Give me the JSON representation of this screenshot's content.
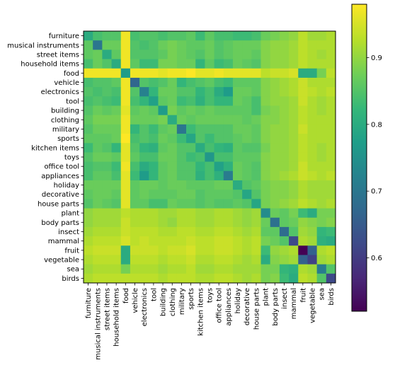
{
  "chart_data": {
    "type": "heatmap",
    "title": "",
    "xlabel": "",
    "ylabel": "",
    "categories": [
      "furniture",
      "musical instruments",
      "street items",
      "household items",
      "food",
      "vehicle",
      "electronics",
      "tool",
      "building",
      "clothing",
      "military",
      "sports",
      "kitchen items",
      "toys",
      "office tool",
      "appliances",
      "holiday",
      "decorative",
      "house parts",
      "plant",
      "body parts",
      "insect",
      "mammal",
      "fruit",
      "vegetable",
      "sea",
      "birds"
    ],
    "colormap": "viridis",
    "vmin": 0.52,
    "vmax": 0.98,
    "colorbar_ticks": [
      "0.6",
      "0.7",
      "0.8",
      "0.9"
    ],
    "colorbar_tick_values": [
      0.6,
      0.7,
      0.8,
      0.9
    ],
    "values": [
      [
        0.8,
        0.84,
        0.85,
        0.85,
        0.97,
        0.84,
        0.85,
        0.85,
        0.84,
        0.85,
        0.85,
        0.86,
        0.83,
        0.86,
        0.84,
        0.84,
        0.83,
        0.83,
        0.84,
        0.87,
        0.88,
        0.89,
        0.9,
        0.93,
        0.91,
        0.91,
        0.92
      ],
      [
        0.86,
        0.7,
        0.87,
        0.87,
        0.97,
        0.85,
        0.84,
        0.85,
        0.87,
        0.88,
        0.87,
        0.86,
        0.86,
        0.87,
        0.85,
        0.86,
        0.87,
        0.87,
        0.87,
        0.89,
        0.9,
        0.9,
        0.91,
        0.93,
        0.92,
        0.92,
        0.92
      ],
      [
        0.86,
        0.87,
        0.8,
        0.86,
        0.97,
        0.85,
        0.85,
        0.85,
        0.86,
        0.88,
        0.87,
        0.86,
        0.85,
        0.87,
        0.85,
        0.86,
        0.87,
        0.87,
        0.86,
        0.89,
        0.9,
        0.9,
        0.91,
        0.93,
        0.92,
        0.91,
        0.92
      ],
      [
        0.84,
        0.87,
        0.85,
        0.8,
        0.97,
        0.86,
        0.83,
        0.83,
        0.88,
        0.88,
        0.87,
        0.87,
        0.82,
        0.86,
        0.83,
        0.84,
        0.87,
        0.86,
        0.85,
        0.89,
        0.9,
        0.9,
        0.91,
        0.93,
        0.92,
        0.92,
        0.92
      ],
      [
        0.97,
        0.97,
        0.97,
        0.97,
        0.77,
        0.97,
        0.97,
        0.97,
        0.96,
        0.97,
        0.97,
        0.98,
        0.96,
        0.96,
        0.97,
        0.96,
        0.96,
        0.96,
        0.96,
        0.93,
        0.94,
        0.94,
        0.95,
        0.8,
        0.8,
        0.88,
        0.93
      ],
      [
        0.84,
        0.85,
        0.85,
        0.86,
        0.97,
        0.67,
        0.85,
        0.84,
        0.85,
        0.87,
        0.82,
        0.84,
        0.85,
        0.86,
        0.84,
        0.83,
        0.86,
        0.86,
        0.86,
        0.89,
        0.9,
        0.91,
        0.92,
        0.94,
        0.92,
        0.92,
        0.92
      ],
      [
        0.85,
        0.84,
        0.85,
        0.84,
        0.97,
        0.85,
        0.72,
        0.82,
        0.87,
        0.87,
        0.85,
        0.85,
        0.82,
        0.84,
        0.8,
        0.77,
        0.87,
        0.87,
        0.86,
        0.89,
        0.9,
        0.91,
        0.92,
        0.94,
        0.93,
        0.92,
        0.93
      ],
      [
        0.84,
        0.85,
        0.84,
        0.83,
        0.97,
        0.84,
        0.82,
        0.78,
        0.86,
        0.87,
        0.83,
        0.84,
        0.81,
        0.84,
        0.82,
        0.82,
        0.87,
        0.86,
        0.84,
        0.89,
        0.9,
        0.9,
        0.91,
        0.94,
        0.92,
        0.91,
        0.92
      ],
      [
        0.85,
        0.87,
        0.86,
        0.87,
        0.96,
        0.86,
        0.87,
        0.86,
        0.77,
        0.88,
        0.86,
        0.87,
        0.86,
        0.87,
        0.86,
        0.86,
        0.86,
        0.86,
        0.84,
        0.88,
        0.89,
        0.9,
        0.91,
        0.93,
        0.92,
        0.91,
        0.92
      ],
      [
        0.86,
        0.88,
        0.88,
        0.88,
        0.97,
        0.87,
        0.87,
        0.87,
        0.88,
        0.8,
        0.87,
        0.86,
        0.87,
        0.87,
        0.87,
        0.87,
        0.87,
        0.86,
        0.87,
        0.89,
        0.89,
        0.9,
        0.91,
        0.93,
        0.92,
        0.92,
        0.92
      ],
      [
        0.85,
        0.87,
        0.87,
        0.87,
        0.97,
        0.82,
        0.85,
        0.83,
        0.86,
        0.87,
        0.7,
        0.83,
        0.85,
        0.85,
        0.85,
        0.85,
        0.87,
        0.87,
        0.86,
        0.89,
        0.9,
        0.9,
        0.91,
        0.94,
        0.92,
        0.92,
        0.92
      ],
      [
        0.86,
        0.86,
        0.86,
        0.87,
        0.98,
        0.84,
        0.85,
        0.84,
        0.87,
        0.86,
        0.83,
        0.79,
        0.85,
        0.83,
        0.85,
        0.85,
        0.86,
        0.87,
        0.86,
        0.89,
        0.9,
        0.9,
        0.91,
        0.93,
        0.92,
        0.92,
        0.92
      ],
      [
        0.83,
        0.86,
        0.85,
        0.82,
        0.96,
        0.85,
        0.82,
        0.81,
        0.86,
        0.87,
        0.85,
        0.85,
        0.8,
        0.84,
        0.82,
        0.81,
        0.86,
        0.85,
        0.85,
        0.88,
        0.9,
        0.9,
        0.91,
        0.93,
        0.92,
        0.91,
        0.92
      ],
      [
        0.85,
        0.87,
        0.87,
        0.86,
        0.96,
        0.86,
        0.84,
        0.84,
        0.87,
        0.87,
        0.85,
        0.83,
        0.84,
        0.76,
        0.84,
        0.84,
        0.86,
        0.86,
        0.86,
        0.89,
        0.9,
        0.9,
        0.91,
        0.93,
        0.92,
        0.91,
        0.92
      ],
      [
        0.84,
        0.85,
        0.85,
        0.83,
        0.97,
        0.84,
        0.8,
        0.82,
        0.86,
        0.87,
        0.85,
        0.85,
        0.82,
        0.84,
        0.78,
        0.81,
        0.87,
        0.86,
        0.85,
        0.89,
        0.9,
        0.9,
        0.91,
        0.94,
        0.92,
        0.92,
        0.92
      ],
      [
        0.84,
        0.86,
        0.86,
        0.84,
        0.96,
        0.83,
        0.77,
        0.82,
        0.86,
        0.87,
        0.85,
        0.85,
        0.81,
        0.84,
        0.81,
        0.71,
        0.87,
        0.86,
        0.85,
        0.89,
        0.9,
        0.91,
        0.92,
        0.94,
        0.93,
        0.92,
        0.93
      ],
      [
        0.87,
        0.87,
        0.87,
        0.87,
        0.96,
        0.86,
        0.87,
        0.87,
        0.86,
        0.87,
        0.87,
        0.86,
        0.86,
        0.86,
        0.87,
        0.87,
        0.8,
        0.85,
        0.86,
        0.88,
        0.89,
        0.89,
        0.9,
        0.92,
        0.91,
        0.91,
        0.91
      ],
      [
        0.86,
        0.87,
        0.87,
        0.86,
        0.96,
        0.86,
        0.87,
        0.86,
        0.86,
        0.86,
        0.87,
        0.87,
        0.85,
        0.86,
        0.86,
        0.86,
        0.85,
        0.79,
        0.85,
        0.88,
        0.89,
        0.89,
        0.9,
        0.92,
        0.91,
        0.91,
        0.91
      ],
      [
        0.85,
        0.87,
        0.86,
        0.85,
        0.96,
        0.86,
        0.86,
        0.84,
        0.84,
        0.87,
        0.86,
        0.86,
        0.85,
        0.86,
        0.85,
        0.85,
        0.86,
        0.85,
        0.79,
        0.88,
        0.89,
        0.9,
        0.91,
        0.93,
        0.92,
        0.91,
        0.92
      ],
      [
        0.9,
        0.91,
        0.91,
        0.91,
        0.93,
        0.92,
        0.92,
        0.92,
        0.91,
        0.91,
        0.92,
        0.92,
        0.91,
        0.91,
        0.92,
        0.92,
        0.91,
        0.9,
        0.91,
        0.74,
        0.87,
        0.86,
        0.88,
        0.83,
        0.8,
        0.88,
        0.88
      ],
      [
        0.9,
        0.91,
        0.91,
        0.91,
        0.94,
        0.92,
        0.92,
        0.92,
        0.91,
        0.9,
        0.92,
        0.92,
        0.91,
        0.91,
        0.92,
        0.92,
        0.91,
        0.9,
        0.91,
        0.87,
        0.69,
        0.86,
        0.87,
        0.9,
        0.89,
        0.88,
        0.89
      ],
      [
        0.91,
        0.92,
        0.92,
        0.92,
        0.94,
        0.93,
        0.93,
        0.93,
        0.92,
        0.92,
        0.93,
        0.93,
        0.92,
        0.92,
        0.93,
        0.93,
        0.92,
        0.91,
        0.92,
        0.86,
        0.86,
        0.68,
        0.85,
        0.91,
        0.9,
        0.82,
        0.83
      ],
      [
        0.92,
        0.93,
        0.93,
        0.93,
        0.95,
        0.93,
        0.94,
        0.93,
        0.93,
        0.93,
        0.93,
        0.94,
        0.93,
        0.93,
        0.94,
        0.94,
        0.93,
        0.92,
        0.93,
        0.88,
        0.87,
        0.85,
        0.62,
        0.92,
        0.91,
        0.81,
        0.8
      ],
      [
        0.93,
        0.94,
        0.94,
        0.94,
        0.8,
        0.94,
        0.94,
        0.94,
        0.93,
        0.94,
        0.94,
        0.95,
        0.93,
        0.93,
        0.94,
        0.94,
        0.93,
        0.92,
        0.93,
        0.83,
        0.9,
        0.91,
        0.92,
        0.52,
        0.66,
        0.92,
        0.93
      ],
      [
        0.92,
        0.93,
        0.93,
        0.93,
        0.8,
        0.93,
        0.93,
        0.93,
        0.92,
        0.93,
        0.93,
        0.94,
        0.92,
        0.92,
        0.93,
        0.93,
        0.92,
        0.91,
        0.92,
        0.8,
        0.89,
        0.9,
        0.91,
        0.66,
        0.61,
        0.91,
        0.92
      ],
      [
        0.91,
        0.92,
        0.92,
        0.92,
        0.88,
        0.92,
        0.92,
        0.92,
        0.91,
        0.92,
        0.92,
        0.93,
        0.91,
        0.91,
        0.92,
        0.92,
        0.91,
        0.91,
        0.91,
        0.88,
        0.88,
        0.82,
        0.81,
        0.92,
        0.91,
        0.71,
        0.85
      ],
      [
        0.92,
        0.93,
        0.93,
        0.93,
        0.93,
        0.93,
        0.93,
        0.93,
        0.92,
        0.93,
        0.93,
        0.93,
        0.92,
        0.92,
        0.93,
        0.93,
        0.92,
        0.91,
        0.92,
        0.88,
        0.89,
        0.83,
        0.8,
        0.93,
        0.92,
        0.85,
        0.62
      ]
    ]
  }
}
